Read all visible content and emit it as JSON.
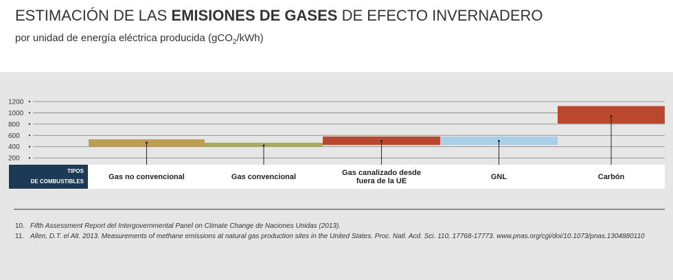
{
  "header": {
    "title_parts": [
      "ESTIMACIÓN DE LAS ",
      "EMISIONES DE GASES",
      " DE EFECTO INVERNADERO"
    ],
    "subtitle_parts": [
      "por unidad de energía eléctrica producida (gCO",
      "2",
      "/kWh)"
    ]
  },
  "chart_data": {
    "type": "range-bar",
    "category_header": [
      "TIPOS",
      "DE COMBUSTIBLES"
    ],
    "categories": [
      "Gas no convencional",
      "Gas convencional",
      "Gas canalizado desde fuera de la UE",
      "GNL",
      "Carbón"
    ],
    "low": [
      400,
      400,
      430,
      430,
      810
    ],
    "high": [
      530,
      470,
      580,
      580,
      1120
    ],
    "mid": [
      470,
      420,
      500,
      500,
      940
    ],
    "colors": [
      "#bd9f4f",
      "#a9ab5b",
      "#b9482f",
      "#a9d0e8",
      "#b9482f"
    ],
    "ylim": [
      80,
      1200
    ],
    "yticks": [
      200,
      400,
      600,
      800,
      1000,
      1200
    ],
    "grid": true
  },
  "footnotes": [
    {
      "number": "10.",
      "text": "Fifth Assessment Report del Intergovernmental Panel on Climate Change de Naciones Unidas (2013)."
    },
    {
      "number": "11.",
      "text": "Allen, D.T. el Alt. 2013. Measurements of methane emissions at natural gas production sites in the United States. Proc. Natl. Acd. Sci. 110, 17768-17773. www.pnas.org/cgi/doi/10.1073/pnas.1304880110"
    }
  ]
}
